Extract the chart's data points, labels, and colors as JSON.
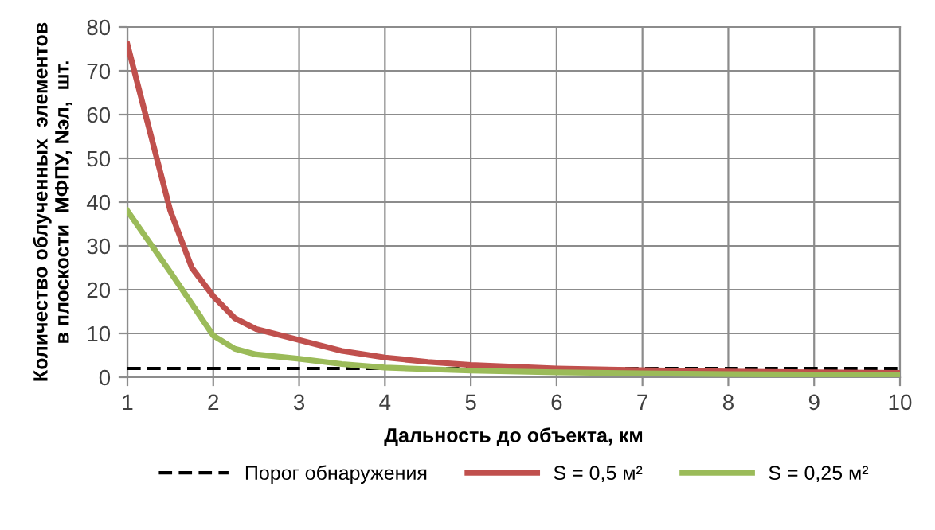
{
  "chart_data": {
    "type": "line",
    "xlabel": "Дальность до объекта, км",
    "ylabel": "Количество облученных  элементов\nв плоскости  МФПУ, Nэл,  шт.",
    "xlim": [
      1,
      10
    ],
    "ylim": [
      0,
      80
    ],
    "xticks": [
      1,
      2,
      3,
      4,
      5,
      6,
      7,
      8,
      9,
      10
    ],
    "yticks": [
      0,
      10,
      20,
      30,
      40,
      50,
      60,
      70,
      80
    ],
    "grid": true,
    "legend": "bottom",
    "marker": "none",
    "series": [
      {
        "name": "Порог обнаружения",
        "color": "#000000",
        "line_style": "dashed",
        "x": [
          1,
          10
        ],
        "values": [
          2,
          2
        ]
      },
      {
        "name": "S = 0,5 м²",
        "color": "#c0504d",
        "line_style": "solid",
        "x": [
          1,
          1.25,
          1.5,
          1.75,
          2,
          2.25,
          2.5,
          3,
          3.5,
          4,
          4.5,
          5,
          6,
          7,
          8,
          9,
          10
        ],
        "values": [
          76,
          57,
          38,
          25,
          18.5,
          13.5,
          11,
          8.5,
          6,
          4.5,
          3.5,
          2.8,
          2,
          1.6,
          1.3,
          1.1,
          1
        ]
      },
      {
        "name": "S = 0,25 м²",
        "color": "#9bbb59",
        "line_style": "solid",
        "x": [
          1,
          1.5,
          2,
          2.25,
          2.5,
          3,
          3.5,
          4,
          5,
          6,
          7,
          8,
          9,
          10
        ],
        "values": [
          38,
          24,
          9.5,
          6.5,
          5.2,
          4.2,
          3,
          2.2,
          1.5,
          1.1,
          0.9,
          0.7,
          0.6,
          0.5
        ]
      }
    ]
  }
}
